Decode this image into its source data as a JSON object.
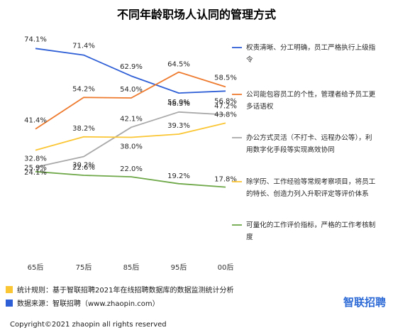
{
  "chart_data": {
    "type": "line",
    "title": "不同年龄职场人认同的管理方式",
    "categories": [
      "65后",
      "75后",
      "85后",
      "95后",
      "00后"
    ],
    "series": [
      {
        "name": "权责清晰、分工明确，员工严格执行上级指令",
        "color": "#2f5fd6",
        "values": [
          74.1,
          71.4,
          62.9,
          56.0,
          56.8
        ],
        "labels": [
          "74.1%",
          "71.4%",
          "62.9%",
          "56.0%",
          "56.8%"
        ]
      },
      {
        "name": "公司能包容员工的个性，管理者给予员工更多话语权",
        "color": "#ee7a2e",
        "values": [
          41.4,
          54.2,
          54.0,
          64.5,
          58.5
        ],
        "labels": [
          "41.4%",
          "54.2%",
          "54.0%",
          "64.5%",
          "58.5%"
        ]
      },
      {
        "name": "办公方式灵活（不打卡、远程办公等），利用数字化手段等实现高效协同",
        "color": "#a9a9a9",
        "values": [
          25.9,
          30.2,
          42.1,
          48.3,
          47.2
        ],
        "labels": [
          "25.9%",
          "30.2%",
          "42.1%",
          "48.3%",
          "47.2%"
        ]
      },
      {
        "name": "除学历、工作经验等常规考察项目，将员工的特长、创造力列入升职评定等评价体系",
        "color": "#fbc634",
        "values": [
          32.8,
          38.2,
          38.0,
          39.3,
          43.8
        ],
        "labels": [
          "32.8%",
          "38.2%",
          "38.0%",
          "39.3%",
          "43.8%"
        ]
      },
      {
        "name": "可量化的工作评价指标，严格的工作考核制度",
        "color": "#6ea848",
        "values": [
          24.1,
          22.6,
          22.0,
          19.2,
          17.8
        ],
        "labels": [
          "24.1%",
          "22.6%",
          "22.0%",
          "19.2%",
          "17.8%"
        ]
      }
    ],
    "ylim": [
      0,
      80
    ],
    "grid": false,
    "legend_position": "right"
  },
  "footnotes": [
    {
      "color": "#fbc634",
      "text": "统计规则：基于智联招聘2021年在线招聘数据库的数据监测统计分析"
    },
    {
      "color": "#2f5fd6",
      "text": "数据来源：智联招聘（www.zhaopin.com）"
    }
  ],
  "brand": {
    "text": "智联招聘",
    "color": "#2e6bd6"
  },
  "copyright": "Copyright©2021 zhaopin  all rights reserved"
}
